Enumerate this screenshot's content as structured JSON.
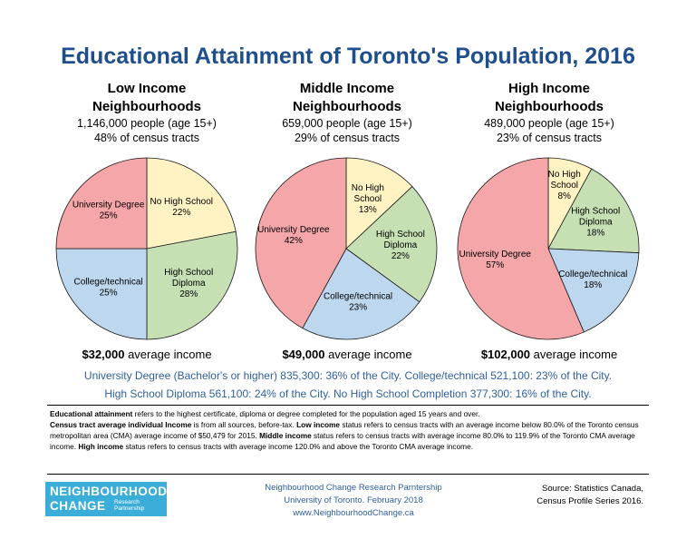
{
  "title": "Educational Attainment of Toronto's Population, 2016",
  "panels": [
    {
      "heading1": "Low Income",
      "heading2": "Neighbourhoods",
      "people": "1,146,000 people (age 15+)",
      "tracts": "48% of census tracts",
      "income_value": "$32,000",
      "income_label": "average income"
    },
    {
      "heading1": "Middle Income",
      "heading2": "Neighbourhoods",
      "people": "659,000 people (age 15+)",
      "tracts": "29% of census tracts",
      "income_value": "$49,000",
      "income_label": "average income"
    },
    {
      "heading1": "High Income",
      "heading2": "Neighbourhoods",
      "people": "489,000 people (age 15+)",
      "tracts": "23% of census tracts",
      "income_value": "$102,000",
      "income_label": "average income"
    }
  ],
  "chart_data": [
    {
      "type": "pie",
      "title": "Low Income Neighbourhoods",
      "categories": [
        "No High School",
        "High School Diploma",
        "College/technical",
        "University Degree"
      ],
      "values": [
        22,
        28,
        25,
        25
      ],
      "labels": [
        "No High School",
        "High School\nDiploma",
        "College/technical",
        "University Degree"
      ],
      "colors": [
        "#fff3c4",
        "#c6e0b4",
        "#bdd7ee",
        "#f4a6a8"
      ]
    },
    {
      "type": "pie",
      "title": "Middle Income Neighbourhoods",
      "categories": [
        "No High School",
        "High School Diploma",
        "College/technical",
        "University Degree"
      ],
      "values": [
        13,
        22,
        23,
        42
      ],
      "labels": [
        "No High\nSchool",
        "High School\nDiploma",
        "College/technical",
        "University Degree"
      ],
      "colors": [
        "#fff3c4",
        "#c6e0b4",
        "#bdd7ee",
        "#f4a6a8"
      ]
    },
    {
      "type": "pie",
      "title": "High Income Neighbourhoods",
      "categories": [
        "No High School",
        "High School Diploma",
        "College/technical",
        "University Degree"
      ],
      "values": [
        8,
        18,
        18,
        57
      ],
      "labels": [
        "No High\nSchool",
        "High School\nDiploma",
        "College/technical",
        "University Degree"
      ],
      "colors": [
        "#fff3c4",
        "#c6e0b4",
        "#bdd7ee",
        "#f4a6a8"
      ]
    }
  ],
  "summary_line1": "University Degree (Bachelor's or higher) 835,300: 36% of the City. College/technical 521,100: 23% of the City.",
  "summary_line2": "High School Diploma 561,100: 24% of the City. No High School Completion 377,300: 16% of the City.",
  "notes": {
    "t1b": "Educational attainment",
    "t1": " refers to the highest certificate, diploma or degree completed for the population aged 15 years and over.",
    "t2b": "Census tract average individual Income",
    "t2": " is from all sources, before-tax. ",
    "t3b": "Low income",
    "t3": " status refers to census tracts with an average income below 80.0% of the Toronto census metropolitan area (CMA) average income of $50,479 for 2015. ",
    "t4b": "Middle income",
    "t4": " status refers to census tracts with average income 80.0% to 119.9% of the Toronto CMA average income. ",
    "t5b": "High income",
    "t5": " status refers to census tracts with average income 120.0% and above the Toronto CMA average income."
  },
  "logo": {
    "line1": "NEIGHBOURHOOD",
    "line2": "CHANGE",
    "sub1": "Research",
    "sub2": "Partnership"
  },
  "credit": {
    "line1": "Neighbourhood Change Research Parntership",
    "line2": "University of Toronto. February 2018",
    "line3": "www.NeighbourhoodChange.ca"
  },
  "source": {
    "line1": "Source: Statistics Canada,",
    "line2": "Census Profile Series 2016."
  }
}
